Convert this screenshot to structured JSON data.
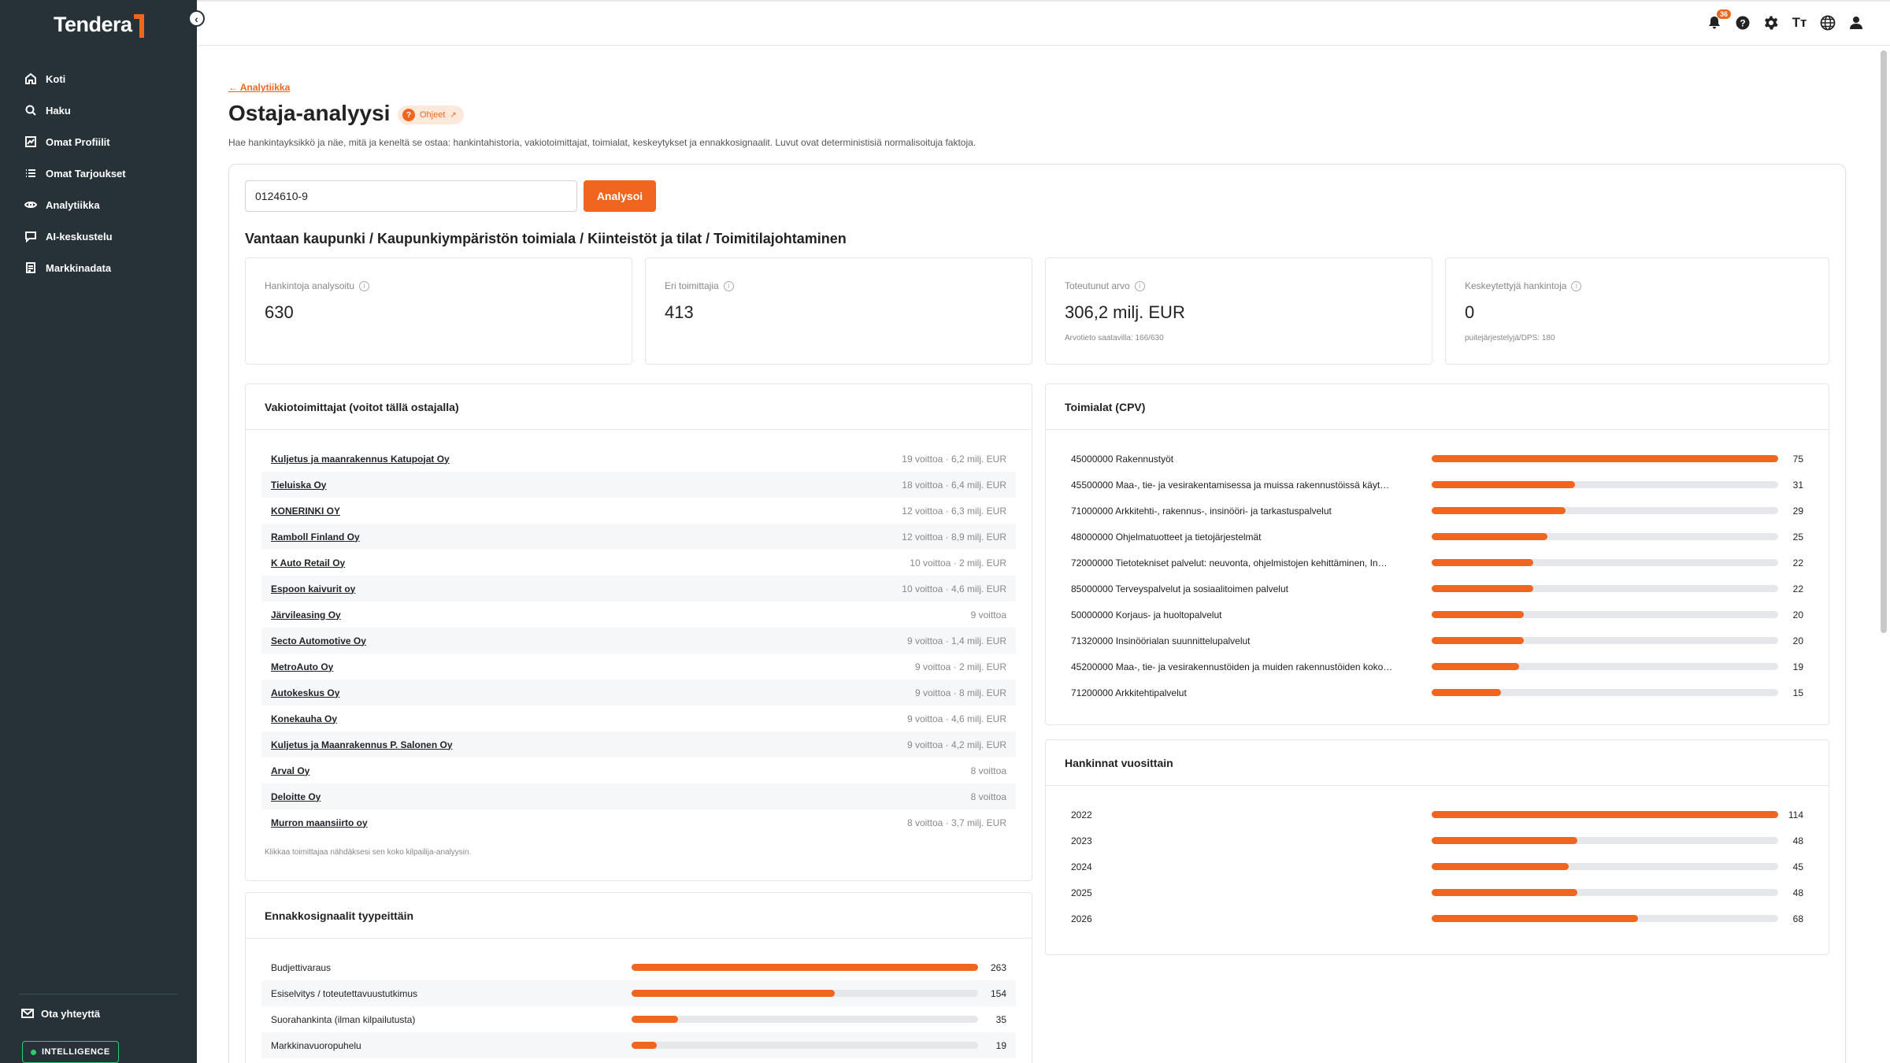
{
  "app": {
    "brand": "Tendera"
  },
  "sidebar": {
    "items": [
      {
        "label": "Koti",
        "icon": "home-icon"
      },
      {
        "label": "Haku",
        "icon": "search-icon"
      },
      {
        "label": "Omat Profiilit",
        "icon": "chart-icon"
      },
      {
        "label": "Omat Tarjoukset",
        "icon": "list-icon"
      },
      {
        "label": "Analytiikka",
        "icon": "eye-icon"
      },
      {
        "label": "AI-keskustelu",
        "icon": "chat-icon"
      },
      {
        "label": "Markkinadata",
        "icon": "report-icon"
      }
    ],
    "contact_label": "Ota yhteyttä",
    "intelligence_label": "INTELLIGENCE"
  },
  "topbar": {
    "notification_count": "36"
  },
  "page": {
    "back_link": "← Analytiikka",
    "title": "Ostaja-analyysi",
    "help_label": "Ohjeet",
    "subtitle": "Hae hankintayksikkö ja näe, mitä ja keneltä se ostaa: hankintahistoria, vakiotoimittajat, toimialat, keskeytykset ja ennakkosignaalit. Luvut ovat deterministisiä normalisoituja faktoja."
  },
  "search": {
    "value": "0124610-9",
    "button_label": "Analysoi"
  },
  "org_title": "Vantaan kaupunki / Kaupunkiympäristön toimiala / Kiinteistöt ja tilat / Toimitilajohtaminen",
  "stats": [
    {
      "label": "Hankintoja analysoitu",
      "value": "630",
      "note": ""
    },
    {
      "label": "Eri toimittajia",
      "value": "413",
      "note": ""
    },
    {
      "label": "Toteutunut arvo",
      "value": "306,2 milj. EUR",
      "note": "Arvotieto saatavilla: 166/630"
    },
    {
      "label": "Keskeytettyjä hankintoja",
      "value": "0",
      "note": "puitejärjestelyjä/DPS: 180"
    }
  ],
  "suppliers": {
    "title": "Vakiotoimittajat (voitot tällä ostajalla)",
    "rows": [
      {
        "name": "Kuljetus ja maanrakennus Katupojat Oy",
        "stats": "19 voittoa · 6,2 milj. EUR"
      },
      {
        "name": "Tieluiska Oy",
        "stats": "18 voittoa · 6,4 milj. EUR"
      },
      {
        "name": "KONERINKI OY",
        "stats": "12 voittoa · 6,3 milj. EUR"
      },
      {
        "name": "Ramboll Finland Oy",
        "stats": "12 voittoa · 8,9 milj. EUR"
      },
      {
        "name": "K Auto Retail Oy",
        "stats": "10 voittoa · 2 milj. EUR"
      },
      {
        "name": "Espoon kaivurit oy",
        "stats": "10 voittoa · 4,6 milj. EUR"
      },
      {
        "name": "Järvileasing Oy",
        "stats": "9 voittoa"
      },
      {
        "name": "Secto Automotive Oy",
        "stats": "9 voittoa · 1,4 milj. EUR"
      },
      {
        "name": "MetroAuto Oy",
        "stats": "9 voittoa · 2 milj. EUR"
      },
      {
        "name": "Autokeskus Oy",
        "stats": "9 voittoa · 8 milj. EUR"
      },
      {
        "name": "Konekauha Oy",
        "stats": "9 voittoa · 4,6 milj. EUR"
      },
      {
        "name": "Kuljetus ja Maanrakennus P. Salonen Oy",
        "stats": "9 voittoa · 4,2 milj. EUR"
      },
      {
        "name": "Arval Oy",
        "stats": "8 voittoa"
      },
      {
        "name": "Deloitte Oy",
        "stats": "8 voittoa"
      },
      {
        "name": "Murron maansiirto oy",
        "stats": "8 voittoa · 3,7 milj. EUR"
      }
    ],
    "footnote": "Klikkaa toimittajaa nähdäksesi sen koko kilpailija-analyysin."
  },
  "cpv": {
    "title": "Toimialat (CPV)",
    "max": 75,
    "rows": [
      {
        "label": "45000000 Rakennustyöt",
        "value": 75
      },
      {
        "label": "45500000 Maa-, tie- ja vesirakentamisessa ja muissa rakennustöissä käyt…",
        "value": 31
      },
      {
        "label": "71000000 Arkkitehti-, rakennus-, insinööri- ja tarkastuspalvelut",
        "value": 29
      },
      {
        "label": "48000000 Ohjelmatuotteet ja tietojärjestelmät",
        "value": 25
      },
      {
        "label": "72000000 Tietotekniset palvelut: neuvonta, ohjelmistojen kehittäminen, In…",
        "value": 22
      },
      {
        "label": "85000000 Terveyspalvelut ja sosiaalitoimen palvelut",
        "value": 22
      },
      {
        "label": "50000000 Korjaus- ja huoltopalvelut",
        "value": 20
      },
      {
        "label": "71320000 Insinöörialan suunnittelupalvelut",
        "value": 20
      },
      {
        "label": "45200000 Maa-, tie- ja vesirakennustöiden ja muiden rakennustöiden koko…",
        "value": 19
      },
      {
        "label": "71200000 Arkkitehtipalvelut",
        "value": 15
      }
    ]
  },
  "years": {
    "title": "Hankinnat vuosittain",
    "max": 114,
    "rows": [
      {
        "label": "2022",
        "value": 114
      },
      {
        "label": "2023",
        "value": 48
      },
      {
        "label": "2024",
        "value": 45
      },
      {
        "label": "2025",
        "value": 48
      },
      {
        "label": "2026",
        "value": 68
      }
    ]
  },
  "signals": {
    "title": "Ennakkosignaalit tyypeittäin",
    "max": 263,
    "rows": [
      {
        "label": "Budjettivaraus",
        "value": 263
      },
      {
        "label": "Esiselvitys / toteutettavuustutkimus",
        "value": 154
      },
      {
        "label": "Suorahankinta (ilman kilpailutusta)",
        "value": 35
      },
      {
        "label": "Markkinavuoropuhelu",
        "value": 19
      }
    ]
  },
  "colors": {
    "accent": "#f0661f",
    "sidebar": "#263238",
    "track": "#e5e7ea",
    "status_green": "#2ecc71"
  }
}
